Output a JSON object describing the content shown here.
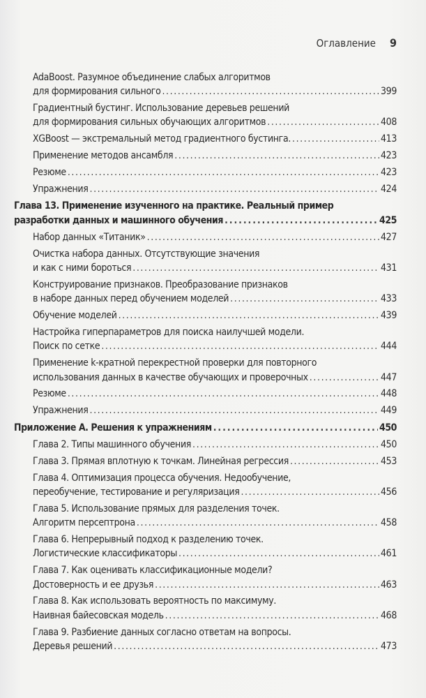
{
  "header": {
    "section": "Оглавление",
    "page_number": "9"
  },
  "toc": [
    {
      "kind": "sub",
      "lines": [
        "AdaBoost. Разумное объединение слабых алгоритмов",
        "для формирования сильного"
      ],
      "page": "399"
    },
    {
      "kind": "sub",
      "lines": [
        "Градиентный бустинг. Использование деревьев решений",
        "для формирования сильных обучающих алгоритмов"
      ],
      "page": "408"
    },
    {
      "kind": "sub",
      "lines": [
        "XGBoost — экстремальный метод градиентного бустинга."
      ],
      "page": "413"
    },
    {
      "kind": "sub",
      "lines": [
        "Применение методов ансамбля"
      ],
      "page": "423"
    },
    {
      "kind": "sub",
      "lines": [
        "Резюме"
      ],
      "page": "423"
    },
    {
      "kind": "sub",
      "lines": [
        "Упражнения"
      ],
      "page": "424"
    },
    {
      "kind": "chapter",
      "lines": [
        "Глава 13. Применение изученного на практике. Реальный пример",
        "разработки данных и машинного обучения"
      ],
      "page": "425"
    },
    {
      "kind": "sub",
      "lines": [
        "Набор данных «Титаник»"
      ],
      "page": "427"
    },
    {
      "kind": "sub",
      "lines": [
        "Очистка набора данных. Отсутствующие значения",
        "и как с ними бороться"
      ],
      "page": "431"
    },
    {
      "kind": "sub",
      "lines": [
        "Конструирование признаков. Преобразование признаков",
        "в наборе данных перед обучением моделей"
      ],
      "page": "433"
    },
    {
      "kind": "sub",
      "lines": [
        "Обучение моделей"
      ],
      "page": "439"
    },
    {
      "kind": "sub",
      "lines": [
        "Настройка гиперпараметров для поиска наилучшей модели.",
        "Поиск по сетке"
      ],
      "page": "444"
    },
    {
      "kind": "sub",
      "lines": [
        "Применение k-кратной перекрестной проверки для повторного",
        "использования данных в качестве обучающих и проверочных"
      ],
      "page": "447"
    },
    {
      "kind": "sub",
      "lines": [
        "Резюме"
      ],
      "page": "448"
    },
    {
      "kind": "sub",
      "lines": [
        "Упражнения"
      ],
      "page": "449"
    },
    {
      "kind": "chapter",
      "lines": [
        "Приложение А. Решения к упражнениям"
      ],
      "page": "450"
    },
    {
      "kind": "sub",
      "lines": [
        "Глава 2. Типы машинного обучения"
      ],
      "page": "450"
    },
    {
      "kind": "sub",
      "lines": [
        "Глава 3. Прямая вплотную к точкам. Линейная регрессия"
      ],
      "page": "453"
    },
    {
      "kind": "sub",
      "lines": [
        "Глава 4. Оптимизация процесса обучения. Недообучение,",
        "переобучение, тестирование и регуляризация"
      ],
      "page": "456"
    },
    {
      "kind": "sub",
      "lines": [
        "Глава 5. Использование прямых для разделения точек.",
        "Алгоритм персептрона"
      ],
      "page": "458"
    },
    {
      "kind": "sub",
      "lines": [
        "Глава 6. Непрерывный подход к разделению точек.",
        "Логистические классификаторы"
      ],
      "page": "461"
    },
    {
      "kind": "sub",
      "lines": [
        "Глава 7. Как оценивать классификационные модели?",
        "Достоверность и ее друзья"
      ],
      "page": "463"
    },
    {
      "kind": "sub",
      "lines": [
        "Глава 8. Как использовать вероятность по максимуму.",
        "Наивная байесовская модель"
      ],
      "page": "468"
    },
    {
      "kind": "sub",
      "lines": [
        "Глава 9. Разбиение данных согласно ответам на вопросы.",
        "Деревья решений"
      ],
      "page": "473"
    }
  ]
}
